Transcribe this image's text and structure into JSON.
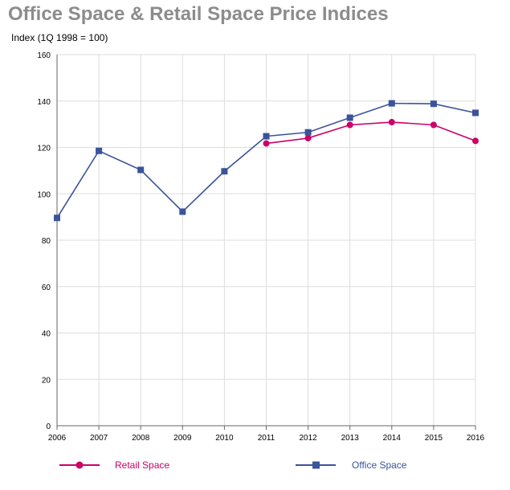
{
  "title": "Office Space & Retail Space Price Indices",
  "chart_data": {
    "type": "line",
    "title": "Office Space & Retail Space Price Indices",
    "ylabel": "Index (1Q 1998 = 100)",
    "xlabel": "",
    "categories": [
      "2006",
      "2007",
      "2008",
      "2009",
      "2010",
      "2011",
      "2012",
      "2013",
      "2014",
      "2015",
      "2016"
    ],
    "ylim": [
      0,
      160
    ],
    "yticks": [
      0,
      20,
      40,
      60,
      80,
      100,
      120,
      140,
      160
    ],
    "grid": true,
    "legend_position": "bottom",
    "series": [
      {
        "name": "Retail Space",
        "color": "#cc0066",
        "marker": "circle",
        "values": [
          null,
          null,
          null,
          null,
          null,
          121.7,
          124,
          129.7,
          130.9,
          129.7,
          122.8
        ]
      },
      {
        "name": "Office Space",
        "color": "#3a5399",
        "marker": "square",
        "values": [
          89.6,
          118.5,
          110.3,
          92.3,
          109.7,
          124.8,
          126.5,
          132.8,
          139,
          138.8,
          134.9
        ]
      }
    ]
  }
}
